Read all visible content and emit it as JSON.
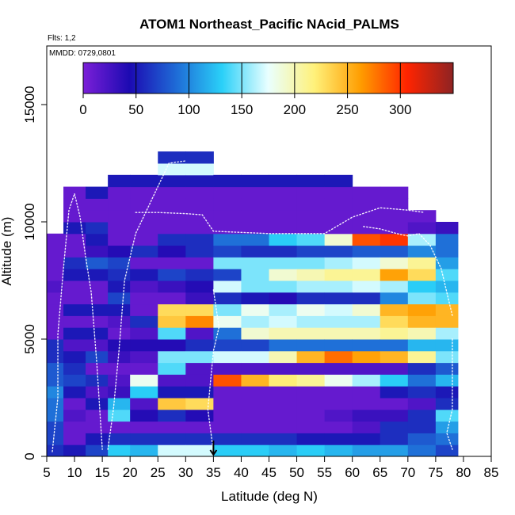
{
  "chart_data": {
    "type": "heatmap",
    "title": "ATOM1 Northeast_Pacific NAcid_PALMS",
    "subtitle": "Flts: 1,2",
    "annotation": "MMDD: 0729,0801",
    "xlabel": "Latitude (deg N)",
    "ylabel": "Altitude (m)",
    "xlim": [
      5,
      85
    ],
    "ylim": [
      0,
      17500
    ],
    "x_ticks": [
      "5",
      "10",
      "15",
      "20",
      "25",
      "30",
      "35",
      "40",
      "45",
      "50",
      "55",
      "60",
      "65",
      "70",
      "75",
      "80",
      "85"
    ],
    "y_ticks": [
      "0",
      "5000",
      "10000",
      "15000"
    ],
    "colorbar": {
      "range": [
        0,
        350
      ],
      "tick_labels": [
        "0",
        "50",
        "100",
        "150",
        "200",
        "250",
        "300"
      ],
      "placement": "top-inside",
      "colors": [
        "#7b1fd8",
        "#1c0ab2",
        "#1e6ad6",
        "#2ad0f8",
        "#e9ffff",
        "#fff17a",
        "#ff9d00",
        "#ff2400",
        "#8e2323"
      ]
    },
    "marker": {
      "x": 35,
      "label": "arrow"
    },
    "columns": [
      {
        "from": 5,
        "to": 8,
        "top": 9500,
        "values": [
          60,
          70,
          70,
          90,
          90,
          100,
          80,
          80,
          60,
          60,
          10,
          10,
          10,
          10,
          20,
          10,
          10,
          10,
          10,
          10,
          10,
          10,
          10,
          10,
          10,
          10,
          10,
          10,
          10,
          10,
          10,
          10,
          10,
          10,
          10,
          10,
          10,
          10,
          10,
          10,
          10,
          10,
          10,
          10,
          10,
          10,
          10,
          10,
          10,
          10,
          10,
          10,
          10,
          10,
          10,
          10,
          10,
          10,
          10,
          10,
          10,
          10,
          10,
          10,
          10,
          10,
          10,
          10,
          10,
          10,
          10,
          10,
          10,
          10,
          10
        ]
      },
      {
        "from": 8,
        "to": 12,
        "top": 11500,
        "values": [
          50,
          10,
          10,
          20,
          10,
          50,
          70,
          60,
          50,
          20,
          50,
          10,
          50,
          10,
          10,
          50,
          60,
          10,
          10,
          50,
          10,
          10,
          10,
          50
        ]
      },
      {
        "from": 12,
        "to": 16,
        "top": 11500,
        "values": [
          70,
          50,
          10,
          10,
          50,
          20,
          60,
          10,
          70,
          20,
          50,
          10,
          50,
          10,
          10,
          50,
          80,
          30,
          50,
          60,
          10,
          10,
          50,
          10
        ]
      },
      {
        "from": 16,
        "to": 20,
        "top": 12000,
        "values": [
          130,
          60,
          10,
          140,
          120,
          30,
          20,
          10,
          30,
          40,
          10,
          20,
          50,
          70,
          50,
          60,
          70,
          40,
          10,
          10,
          10,
          10,
          10,
          50
        ]
      },
      {
        "from": 20,
        "to": 25,
        "top": 12000,
        "values": [
          120,
          60,
          10,
          40,
          20,
          130,
          180,
          10,
          20,
          40,
          20,
          60,
          10,
          10,
          20,
          50,
          10,
          60,
          10,
          10,
          10,
          10,
          10,
          50
        ]
      },
      {
        "from": 25,
        "to": 30,
        "top": 13000,
        "values": [
          170,
          60,
          10,
          60,
          240,
          50,
          20,
          140,
          150,
          40,
          140,
          240,
          230,
          10,
          30,
          70,
          10,
          40,
          60,
          10,
          10,
          10,
          10,
          50
        ]
      },
      {
        "from": 30,
        "to": 35,
        "top": 13000,
        "values": [
          170,
          60,
          10,
          40,
          230,
          50,
          20,
          20,
          150,
          60,
          20,
          270,
          230,
          30,
          40,
          60,
          10,
          60,
          60,
          10,
          10,
          10,
          10,
          50
        ]
      },
      {
        "from": 35,
        "to": 40,
        "top": 12000,
        "values": [
          130,
          60,
          10,
          10,
          10,
          10,
          290,
          20,
          170,
          70,
          90,
          180,
          150,
          60,
          170,
          70,
          150,
          70,
          90,
          10,
          10,
          10,
          10,
          50
        ]
      },
      {
        "from": 40,
        "to": 45,
        "top": 12000,
        "values": [
          130,
          60,
          10,
          10,
          10,
          10,
          250,
          20,
          170,
          70,
          190,
          160,
          180,
          50,
          150,
          150,
          150,
          60,
          90,
          10,
          10,
          10,
          10,
          50
        ]
      },
      {
        "from": 45,
        "to": 50,
        "top": 12000,
        "values": [
          120,
          60,
          10,
          10,
          10,
          10,
          220,
          20,
          200,
          90,
          200,
          170,
          160,
          40,
          150,
          190,
          150,
          60,
          130,
          10,
          10,
          10,
          10,
          50
        ]
      },
      {
        "from": 50,
        "to": 55,
        "top": 12000,
        "values": [
          130,
          50,
          10,
          10,
          10,
          10,
          210,
          20,
          250,
          90,
          200,
          160,
          180,
          60,
          160,
          200,
          150,
          70,
          140,
          10,
          10,
          10,
          10,
          50
        ]
      },
      {
        "from": 55,
        "to": 60,
        "top": 12000,
        "values": [
          120,
          50,
          10,
          20,
          10,
          10,
          180,
          20,
          280,
          90,
          200,
          160,
          170,
          60,
          160,
          210,
          160,
          70,
          190,
          10,
          10,
          10,
          10,
          50
        ]
      },
      {
        "from": 60,
        "to": 65,
        "top": 11500,
        "values": [
          110,
          50,
          20,
          30,
          10,
          10,
          160,
          20,
          260,
          90,
          200,
          160,
          190,
          60,
          170,
          210,
          170,
          80,
          290,
          10,
          10,
          10,
          10,
          50
        ]
      },
      {
        "from": 65,
        "to": 70,
        "top": 11500,
        "values": [
          110,
          60,
          60,
          30,
          10,
          50,
          130,
          20,
          250,
          90,
          210,
          230,
          250,
          100,
          160,
          260,
          190,
          80,
          300,
          10,
          10,
          10,
          10,
          50
        ]
      },
      {
        "from": 70,
        "to": 75,
        "top": 10500,
        "values": [
          90,
          80,
          60,
          60,
          20,
          60,
          90,
          60,
          210,
          120,
          200,
          250,
          260,
          150,
          130,
          230,
          210,
          100,
          160,
          20,
          10,
          10,
          10,
          50
        ]
      },
      {
        "from": 75,
        "to": 79,
        "top": 10000,
        "values": [
          70,
          90,
          110,
          140,
          60,
          50,
          120,
          80,
          150,
          120,
          160,
          250,
          250,
          140,
          120,
          140,
          110,
          90,
          90,
          30,
          10,
          10,
          10,
          50
        ]
      }
    ],
    "bin_height_m": 500,
    "sample_tracks": [
      {
        "x": [
          6,
          7,
          7,
          8,
          9,
          10,
          11,
          12,
          13,
          14,
          15
        ],
        "y": [
          200,
          2500,
          5200,
          8000,
          10500,
          11200,
          10200,
          8500,
          7000,
          4000,
          300
        ]
      },
      {
        "x": [
          16,
          17,
          18,
          19,
          21,
          23,
          25,
          27,
          30
        ],
        "y": [
          300,
          2000,
          4500,
          7500,
          9500,
          10500,
          11500,
          12500,
          12600
        ]
      },
      {
        "x": [
          21,
          25,
          30,
          33,
          35,
          40,
          45,
          50,
          55,
          60,
          65,
          70,
          73
        ],
        "y": [
          10400,
          10400,
          10350,
          10300,
          9600,
          9550,
          9500,
          9500,
          9500,
          10200,
          10600,
          10500,
          10400
        ]
      },
      {
        "x": [
          35,
          36,
          35,
          34,
          35
        ],
        "y": [
          7100,
          5500,
          4500,
          2000,
          200
        ]
      },
      {
        "x": [
          62,
          65,
          68,
          70,
          72,
          74,
          76,
          78
        ],
        "y": [
          9800,
          9700,
          9500,
          9400,
          9500,
          9000,
          8000,
          6000
        ]
      },
      {
        "x": [
          78,
          78,
          78,
          77,
          78
        ],
        "y": [
          5000,
          3500,
          2000,
          1000,
          300
        ]
      }
    ]
  }
}
